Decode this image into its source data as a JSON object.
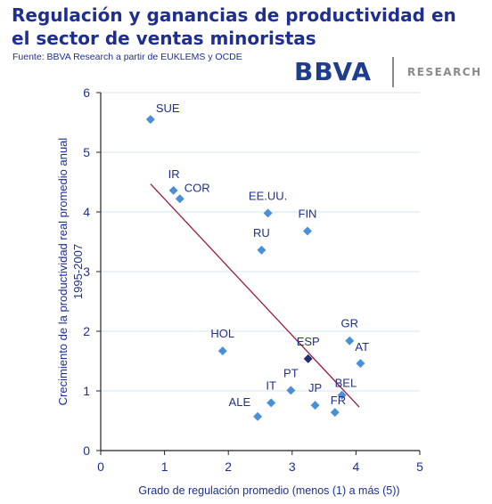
{
  "header": {
    "title": "Regulación y ganancias de productividad en el sector de ventas minoristas",
    "source": "Fuente: BBVA Research  a partir de EUKLEMS y OCDE"
  },
  "logo": {
    "brand": "BBVA",
    "division": "RESEARCH"
  },
  "colors": {
    "title": "#1f2f8f",
    "points": "#4a90d9",
    "highlight": "#1f2f6f",
    "trendline": "#9b1b3b",
    "grid": "#d6e6f2",
    "axis": "#222222",
    "labels": "#1f2f8f"
  },
  "chart_data": {
    "type": "scatter",
    "title": "Regulación y ganancias de productividad en el sector de ventas minoristas",
    "xlabel": "Grado de regulación promedio  (menos (1)  a más (5))",
    "ylabel": "Crecimiento de la productividad real promedio anual 1995-2007",
    "xlim": [
      0,
      5
    ],
    "ylim": [
      0,
      6
    ],
    "xticks": [
      0,
      1,
      2,
      3,
      4,
      5
    ],
    "yticks": [
      0,
      1,
      2,
      3,
      4,
      5,
      6
    ],
    "grid": "horizontal",
    "points": [
      {
        "label": "SUE",
        "x": 0.78,
        "y": 5.55
      },
      {
        "label": "IR",
        "x": 1.14,
        "y": 4.36
      },
      {
        "label": "COR",
        "x": 1.24,
        "y": 4.22
      },
      {
        "label": "EE.UU.",
        "x": 2.62,
        "y": 3.98
      },
      {
        "label": "FIN",
        "x": 3.24,
        "y": 3.68
      },
      {
        "label": "RU",
        "x": 2.52,
        "y": 3.36
      },
      {
        "label": "HOL",
        "x": 1.91,
        "y": 1.67
      },
      {
        "label": "GR",
        "x": 3.9,
        "y": 1.84
      },
      {
        "label": "AT",
        "x": 4.07,
        "y": 1.46
      },
      {
        "label": "ESP",
        "x": 3.25,
        "y": 1.54,
        "highlight": true
      },
      {
        "label": "PT",
        "x": 2.98,
        "y": 1.01
      },
      {
        "label": "IT",
        "x": 2.67,
        "y": 0.8
      },
      {
        "label": "ALE",
        "x": 2.46,
        "y": 0.57
      },
      {
        "label": "JP",
        "x": 3.36,
        "y": 0.76
      },
      {
        "label": "BEL",
        "x": 3.78,
        "y": 0.93
      },
      {
        "label": "FR",
        "x": 3.67,
        "y": 0.64
      }
    ],
    "trendline": {
      "x1": 0.78,
      "y1": 4.47,
      "x2": 4.05,
      "y2": 0.73
    }
  }
}
